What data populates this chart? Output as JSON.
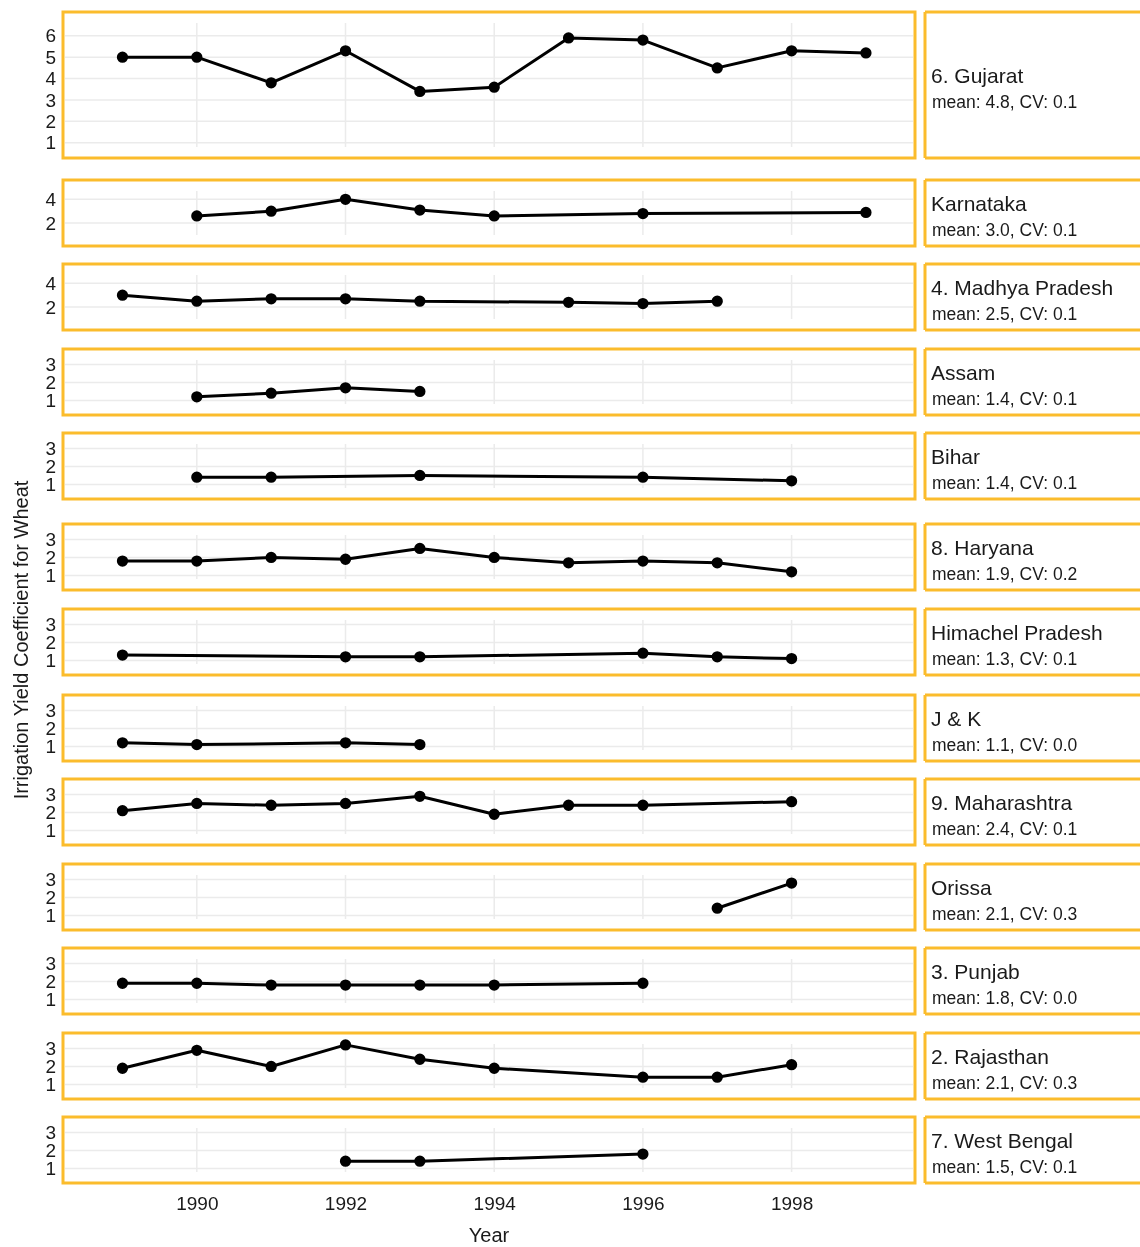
{
  "chart_data": [
    {
      "type": "line",
      "annotations": [
        "6. Gujarat",
        "mean: 4.8, CV: 0.1"
      ],
      "x": [
        1989,
        1990,
        1991,
        1992,
        1993,
        1994,
        1995,
        1996,
        1997,
        1998,
        1999
      ],
      "series": [
        {
          "color": "#000000",
          "values": [
            5.0,
            5.0,
            3.8,
            5.3,
            3.4,
            3.6,
            5.9,
            5.8,
            4.5,
            5.3,
            5.2
          ]
        }
      ],
      "xlim": [
        1988.2,
        1999.66
      ],
      "xticks": [
        1990,
        1992,
        1994,
        1996,
        1998
      ],
      "ylim": [
        0.8,
        6.6
      ],
      "yticks": [
        1,
        2,
        3,
        4,
        5,
        6
      ],
      "grid": true,
      "marker": "circle",
      "tick_labels": "y"
    },
    {
      "type": "line",
      "annotations": [
        "Karnataka",
        "mean: 3.0, CV: 0.1"
      ],
      "x": [
        1990,
        1991,
        1992,
        1993,
        1994,
        1996,
        1999
      ],
      "series": [
        {
          "color": "#000000",
          "values": [
            2.6,
            3.0,
            4.0,
            3.1,
            2.6,
            2.8,
            2.9
          ]
        }
      ],
      "xlim": [
        1988.2,
        1999.66
      ],
      "xticks": [
        1990,
        1992,
        1994,
        1996,
        1998
      ],
      "ylim": [
        1.0,
        4.7
      ],
      "yticks": [
        2,
        4
      ],
      "grid": true,
      "marker": "circle",
      "tick_labels": "y"
    },
    {
      "type": "line",
      "annotations": [
        "4. Madhya Pradesh",
        "mean: 2.5, CV: 0.1"
      ],
      "x": [
        1989,
        1990,
        1991,
        1992,
        1993,
        1995,
        1996,
        1997
      ],
      "series": [
        {
          "color": "#000000",
          "values": [
            3.0,
            2.5,
            2.7,
            2.7,
            2.5,
            2.4,
            2.3,
            2.5
          ]
        }
      ],
      "xlim": [
        1988.2,
        1999.66
      ],
      "xticks": [
        1990,
        1992,
        1994,
        1996,
        1998
      ],
      "ylim": [
        1.0,
        4.7
      ],
      "yticks": [
        2,
        4
      ],
      "grid": true,
      "marker": "circle",
      "tick_labels": "y"
    },
    {
      "type": "line",
      "annotations": [
        "Assam",
        "mean: 1.4, CV: 0.1"
      ],
      "x": [
        1990,
        1991,
        1992,
        1993
      ],
      "series": [
        {
          "color": "#000000",
          "values": [
            1.2,
            1.4,
            1.7,
            1.5
          ]
        }
      ],
      "xlim": [
        1988.2,
        1999.66
      ],
      "xticks": [
        1990,
        1992,
        1994,
        1996,
        1998
      ],
      "ylim": [
        0.8,
        3.25
      ],
      "yticks": [
        1,
        2,
        3
      ],
      "grid": true,
      "marker": "circle",
      "tick_labels": "y"
    },
    {
      "type": "line",
      "annotations": [
        "Bihar",
        "mean: 1.4, CV: 0.1"
      ],
      "x": [
        1990,
        1991,
        1993,
        1996,
        1998
      ],
      "series": [
        {
          "color": "#000000",
          "values": [
            1.4,
            1.4,
            1.5,
            1.4,
            1.2
          ]
        }
      ],
      "xlim": [
        1988.2,
        1999.66
      ],
      "xticks": [
        1990,
        1992,
        1994,
        1996,
        1998
      ],
      "ylim": [
        0.8,
        3.25
      ],
      "yticks": [
        1,
        2,
        3
      ],
      "grid": true,
      "marker": "circle",
      "tick_labels": "y"
    },
    {
      "type": "line",
      "annotations": [
        "8. Haryana",
        "mean: 1.9, CV: 0.2"
      ],
      "x": [
        1989,
        1990,
        1991,
        1992,
        1993,
        1994,
        1995,
        1996,
        1997,
        1998
      ],
      "series": [
        {
          "color": "#000000",
          "values": [
            1.8,
            1.8,
            2.0,
            1.9,
            2.5,
            2.0,
            1.7,
            1.8,
            1.7,
            1.2
          ]
        }
      ],
      "xlim": [
        1988.2,
        1999.66
      ],
      "xticks": [
        1990,
        1992,
        1994,
        1996,
        1998
      ],
      "ylim": [
        0.8,
        3.25
      ],
      "yticks": [
        1,
        2,
        3
      ],
      "grid": true,
      "marker": "circle",
      "tick_labels": "y"
    },
    {
      "type": "line",
      "annotations": [
        "Himachel Pradesh",
        "mean: 1.3, CV: 0.1"
      ],
      "ylabel": "Irrigation Yield Coefficient for Wheat",
      "x": [
        1989,
        1992,
        1993,
        1996,
        1997,
        1998
      ],
      "series": [
        {
          "color": "#000000",
          "values": [
            1.3,
            1.2,
            1.2,
            1.4,
            1.2,
            1.1
          ]
        }
      ],
      "xlim": [
        1988.2,
        1999.66
      ],
      "xticks": [
        1990,
        1992,
        1994,
        1996,
        1998
      ],
      "ylim": [
        0.8,
        3.25
      ],
      "yticks": [
        1,
        2,
        3
      ],
      "grid": true,
      "marker": "circle",
      "tick_labels": "y"
    },
    {
      "type": "line",
      "annotations": [
        "J & K",
        "mean: 1.1, CV: 0.0"
      ],
      "x": [
        1989,
        1990,
        1992,
        1993
      ],
      "series": [
        {
          "color": "#000000",
          "values": [
            1.2,
            1.1,
            1.2,
            1.1
          ]
        }
      ],
      "xlim": [
        1988.2,
        1999.66
      ],
      "xticks": [
        1990,
        1992,
        1994,
        1996,
        1998
      ],
      "ylim": [
        0.8,
        3.25
      ],
      "yticks": [
        1,
        2,
        3
      ],
      "grid": true,
      "marker": "circle",
      "tick_labels": "y"
    },
    {
      "type": "line",
      "annotations": [
        "9. Maharashtra",
        "mean: 2.4, CV: 0.1"
      ],
      "x": [
        1989,
        1990,
        1991,
        1992,
        1993,
        1994,
        1995,
        1996,
        1998
      ],
      "series": [
        {
          "color": "#000000",
          "values": [
            2.1,
            2.5,
            2.4,
            2.5,
            2.9,
            1.9,
            2.4,
            2.4,
            2.6
          ]
        }
      ],
      "xlim": [
        1988.2,
        1999.66
      ],
      "xticks": [
        1990,
        1992,
        1994,
        1996,
        1998
      ],
      "ylim": [
        0.8,
        3.25
      ],
      "yticks": [
        1,
        2,
        3
      ],
      "grid": true,
      "marker": "circle",
      "tick_labels": "y"
    },
    {
      "type": "line",
      "annotations": [
        "Orissa",
        "mean: 2.1, CV: 0.3"
      ],
      "x": [
        1997,
        1998
      ],
      "series": [
        {
          "color": "#000000",
          "values": [
            1.4,
            2.8
          ]
        }
      ],
      "xlim": [
        1988.2,
        1999.66
      ],
      "xticks": [
        1990,
        1992,
        1994,
        1996,
        1998
      ],
      "ylim": [
        0.8,
        3.25
      ],
      "yticks": [
        1,
        2,
        3
      ],
      "grid": true,
      "marker": "circle",
      "tick_labels": "y"
    },
    {
      "type": "line",
      "annotations": [
        "3. Punjab",
        "mean: 1.8, CV: 0.0"
      ],
      "x": [
        1989,
        1990,
        1991,
        1992,
        1993,
        1994,
        1996
      ],
      "series": [
        {
          "color": "#000000",
          "values": [
            1.9,
            1.9,
            1.8,
            1.8,
            1.8,
            1.8,
            1.9
          ]
        }
      ],
      "xlim": [
        1988.2,
        1999.66
      ],
      "xticks": [
        1990,
        1992,
        1994,
        1996,
        1998
      ],
      "ylim": [
        0.8,
        3.25
      ],
      "yticks": [
        1,
        2,
        3
      ],
      "grid": true,
      "marker": "circle",
      "tick_labels": "y"
    },
    {
      "type": "line",
      "annotations": [
        "2. Rajasthan",
        "mean: 2.1, CV: 0.3"
      ],
      "x": [
        1989,
        1990,
        1991,
        1992,
        1993,
        1994,
        1996,
        1997,
        1998
      ],
      "series": [
        {
          "color": "#000000",
          "values": [
            1.9,
            2.9,
            2.0,
            3.2,
            2.4,
            1.9,
            1.4,
            1.4,
            2.1
          ]
        }
      ],
      "xlim": [
        1988.2,
        1999.66
      ],
      "xticks": [
        1990,
        1992,
        1994,
        1996,
        1998
      ],
      "ylim": [
        0.8,
        3.25
      ],
      "yticks": [
        1,
        2,
        3
      ],
      "grid": true,
      "marker": "circle",
      "tick_labels": "y"
    },
    {
      "type": "line",
      "annotations": [
        "7. West Bengal",
        "mean: 1.5, CV: 0.1"
      ],
      "xlabel": "Year",
      "x": [
        1992,
        1993,
        1996
      ],
      "series": [
        {
          "color": "#000000",
          "values": [
            1.4,
            1.4,
            1.8
          ]
        }
      ],
      "xlim": [
        1988.2,
        1999.66
      ],
      "xticks": [
        1990,
        1992,
        1994,
        1996,
        1998
      ],
      "ylim": [
        0.8,
        3.25
      ],
      "yticks": [
        1,
        2,
        3
      ],
      "grid": true,
      "marker": "circle"
    }
  ]
}
